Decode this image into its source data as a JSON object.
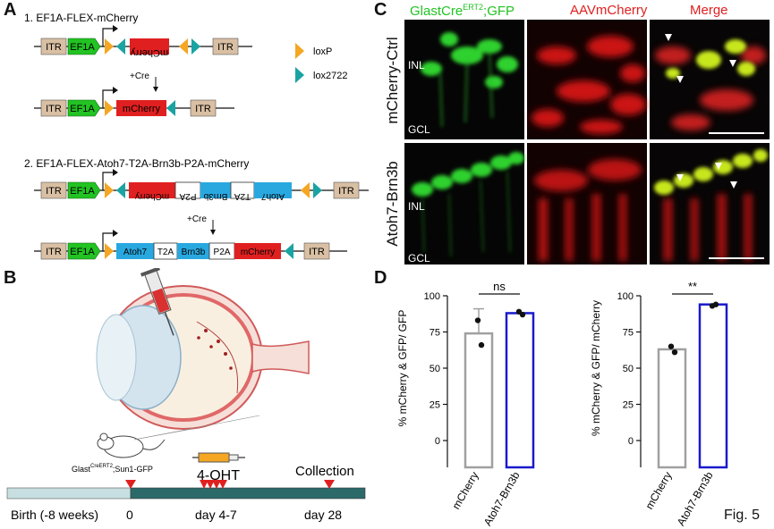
{
  "panels": {
    "A": "A",
    "B": "B",
    "C": "C",
    "D": "D"
  },
  "panelA": {
    "construct1_title": "1. EF1A-FLEX-mCherry",
    "construct2_title": "2. EF1A-FLEX-Atoh7-T2A-Brn3b-P2A-mCherry",
    "cre": "+Cre",
    "legend": {
      "loxp": "loxP",
      "lox2722": "lox2722"
    },
    "labels": {
      "itr": "ITR",
      "ef1a": "EF1A",
      "mcherry": "mCherry",
      "atoh7": "Atoh7",
      "t2a": "T2A",
      "brn3b": "Brn3b",
      "p2a": "P2A"
    }
  },
  "panelB": {
    "mouse_label": "Glast",
    "mouse_sup": "CreERT2",
    "mouse_suffix": ";Sun1-GFP",
    "drug": "4-OHT",
    "collection": "Collection",
    "birth": "Birth (-8 weeks)",
    "day0": "0",
    "day47": "day 4-7",
    "day28": "day 28"
  },
  "panelC": {
    "col1_pre": "GlastCre",
    "col1_sup": "ERT2",
    "col1_post": ";GFP",
    "col2": "AAVmCherry",
    "col3": "Merge",
    "row1": "mCherry-Ctrl",
    "row2": "Atoh7-Brn3b",
    "inl": "INL",
    "gcl": "GCL"
  },
  "colors": {
    "green": "#22c322",
    "red": "#e02020",
    "blue": "#1a1acc",
    "grey": "#a0a0a0",
    "orange": "#f5a623",
    "teal": "#1aa3a3",
    "tan": "#d9bfa3",
    "cyan": "#29a8e0"
  },
  "chart_data": [
    {
      "type": "bar",
      "ylabel": "% mCherry & GFP/ GFP",
      "categories": [
        "mCherry",
        "Atoh7-Brn3b"
      ],
      "values": [
        74,
        88
      ],
      "error": [
        17,
        0
      ],
      "points": [
        [
          83,
          66
        ],
        [
          89,
          87
        ]
      ],
      "ylim": [
        0,
        100
      ],
      "yticks": [
        0,
        25,
        50,
        75,
        100
      ],
      "significance": "ns"
    },
    {
      "type": "bar",
      "ylabel": "% mCherry & GFP/ mCherry",
      "categories": [
        "mCherry",
        "Atoh7-Brn3b"
      ],
      "values": [
        63,
        94
      ],
      "points": [
        [
          65,
          61
        ],
        [
          93,
          94
        ]
      ],
      "ylim": [
        0,
        100
      ],
      "yticks": [
        0,
        25,
        50,
        75,
        100
      ],
      "significance": "**"
    }
  ],
  "fig": "Fig. 5"
}
